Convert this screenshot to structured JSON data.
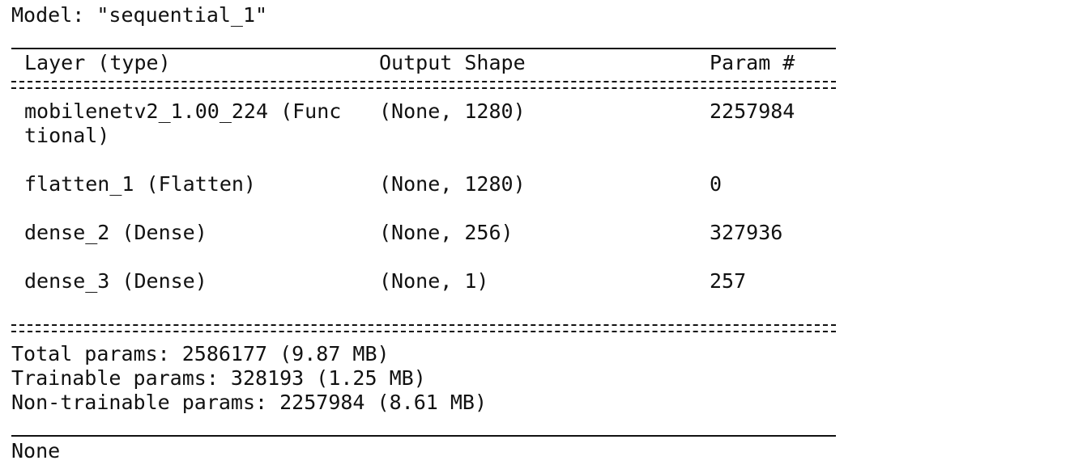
{
  "model_title": "Model: \"sequential_1\"",
  "headers": {
    "layer": "Layer (type)",
    "shape": "Output Shape",
    "param": "Param #"
  },
  "rows": [
    {
      "layer": "mobilenetv2_1.00_224 (Func",
      "layer_cont": "tional)",
      "shape": "(None, 1280)",
      "param": "2257984"
    },
    {
      "layer": "flatten_1 (Flatten)",
      "shape": "(None, 1280)",
      "param": "0"
    },
    {
      "layer": "dense_2 (Dense)",
      "shape": "(None, 256)",
      "param": "327936"
    },
    {
      "layer": "dense_3 (Dense)",
      "shape": "(None, 1)",
      "param": "257"
    }
  ],
  "summary": {
    "total": "Total params: 2586177 (9.87 MB)",
    "trainable": "Trainable params: 328193 (1.25 MB)",
    "non_trainable": "Non-trainable params: 2257984 (8.61 MB)"
  },
  "return_value": "None"
}
